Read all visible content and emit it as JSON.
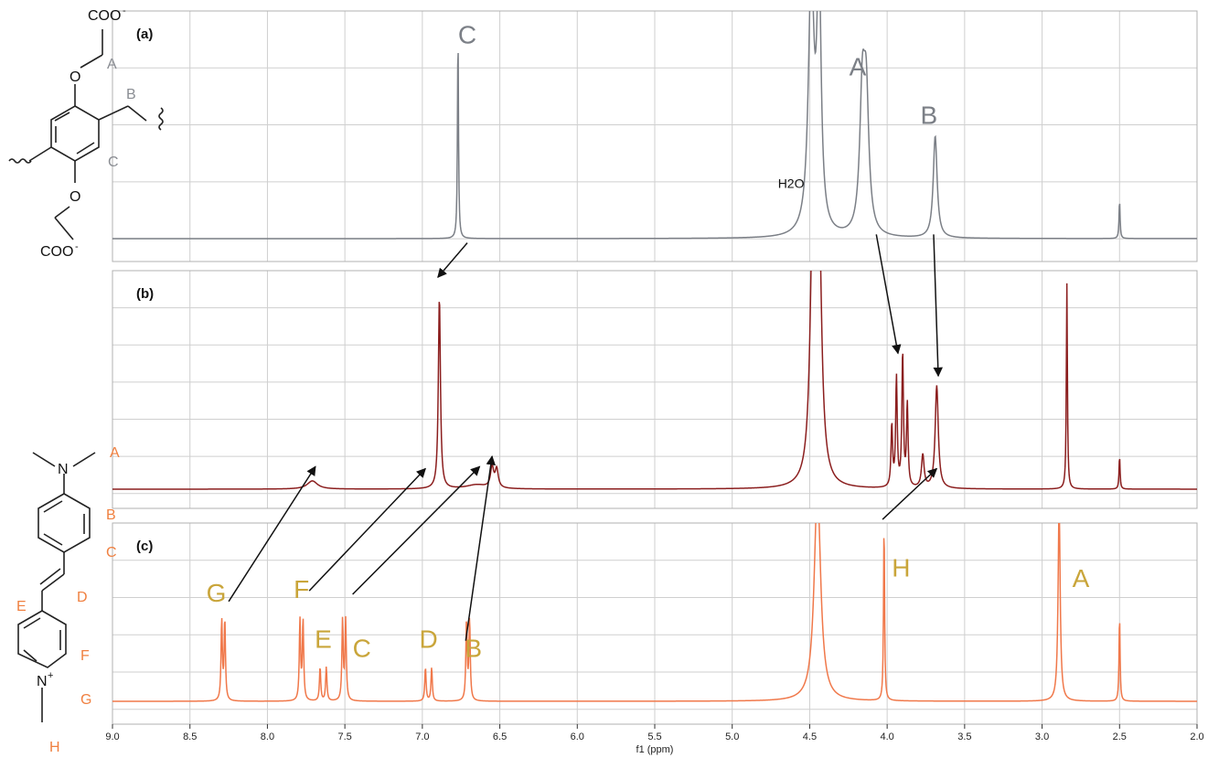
{
  "chart_data": {
    "type": "line",
    "xlabel": "f1 (ppm)",
    "xlim": [
      9.0,
      2.0
    ],
    "x_reversed": true,
    "x_ticks": [
      "9.0",
      "8.5",
      "8.0",
      "7.5",
      "7.0",
      "6.5",
      "6.0",
      "5.5",
      "5.0",
      "4.5",
      "4.0",
      "3.5",
      "3.0",
      "2.5",
      "2.0"
    ],
    "grid": true,
    "panels": [
      {
        "label": "(a)",
        "color": "#7b7f86",
        "solvent_label": "H2O",
        "peaks": [
          {
            "ppm": 6.77,
            "h": 0.96,
            "w": 0.004
          },
          {
            "ppm": 4.49,
            "h": 1.2,
            "w": 0.022
          },
          {
            "ppm": 4.44,
            "h": 1.2,
            "w": 0.016
          },
          {
            "ppm": 4.16,
            "h": 0.62,
            "w": 0.02
          },
          {
            "ppm": 4.135,
            "h": 0.6,
            "w": 0.02
          },
          {
            "ppm": 3.69,
            "h": 0.48,
            "w": 0.015
          },
          {
            "ppm": 2.5,
            "h": 0.18,
            "w": 0.004
          }
        ],
        "peak_labels": [
          {
            "text": "C",
            "ppm": 6.71,
            "level": 0.92
          },
          {
            "text": "A",
            "ppm": 4.19,
            "level": 0.77
          },
          {
            "text": "B",
            "ppm": 3.73,
            "level": 0.54
          }
        ]
      },
      {
        "label": "(b)",
        "color": "#8b1e1e",
        "peaks": [
          {
            "ppm": 6.89,
            "h": 0.93,
            "w": 0.008
          },
          {
            "ppm": 4.48,
            "h": 1.2,
            "w": 0.02
          },
          {
            "ppm": 4.44,
            "h": 1.2,
            "w": 0.02
          },
          {
            "ppm": 3.97,
            "h": 0.3,
            "w": 0.006
          },
          {
            "ppm": 3.94,
            "h": 0.53,
            "w": 0.006
          },
          {
            "ppm": 3.9,
            "h": 0.65,
            "w": 0.006
          },
          {
            "ppm": 3.87,
            "h": 0.4,
            "w": 0.006
          },
          {
            "ppm": 3.77,
            "h": 0.16,
            "w": 0.01
          },
          {
            "ppm": 3.68,
            "h": 0.5,
            "w": 0.012
          },
          {
            "ppm": 2.84,
            "h": 1.0,
            "w": 0.004
          },
          {
            "ppm": 2.5,
            "h": 0.16,
            "w": 0.004
          },
          {
            "ppm": 7.71,
            "h": 0.04,
            "w": 0.04
          },
          {
            "ppm": 6.55,
            "h": 0.1,
            "w": 0.012
          },
          {
            "ppm": 6.52,
            "h": 0.09,
            "w": 0.012
          },
          {
            "ppm": 6.65,
            "h": 0.02,
            "w": 0.08
          }
        ]
      },
      {
        "label": "(c)",
        "color": "#f0784a",
        "peaks": [
          {
            "ppm": 8.295,
            "h": 0.45,
            "w": 0.005
          },
          {
            "ppm": 8.275,
            "h": 0.45,
            "w": 0.005
          },
          {
            "ppm": 7.79,
            "h": 0.45,
            "w": 0.005
          },
          {
            "ppm": 7.77,
            "h": 0.45,
            "w": 0.005
          },
          {
            "ppm": 7.66,
            "h": 0.19,
            "w": 0.005
          },
          {
            "ppm": 7.62,
            "h": 0.19,
            "w": 0.005
          },
          {
            "ppm": 7.515,
            "h": 0.45,
            "w": 0.005
          },
          {
            "ppm": 7.495,
            "h": 0.45,
            "w": 0.005
          },
          {
            "ppm": 6.98,
            "h": 0.19,
            "w": 0.005
          },
          {
            "ppm": 6.94,
            "h": 0.19,
            "w": 0.005
          },
          {
            "ppm": 6.715,
            "h": 0.45,
            "w": 0.005
          },
          {
            "ppm": 6.695,
            "h": 0.45,
            "w": 0.005
          },
          {
            "ppm": 4.45,
            "h": 1.2,
            "w": 0.025
          },
          {
            "ppm": 4.02,
            "h": 1.0,
            "w": 0.004
          },
          {
            "ppm": 2.89,
            "h": 1.1,
            "w": 0.008
          },
          {
            "ppm": 2.5,
            "h": 0.48,
            "w": 0.004
          }
        ],
        "peak_labels": [
          {
            "text": "G",
            "ppm": 8.33,
            "level": 0.56
          },
          {
            "text": "F",
            "ppm": 7.78,
            "level": 0.58
          },
          {
            "text": "E",
            "ppm": 7.64,
            "level": 0.3
          },
          {
            "text": "C",
            "ppm": 7.39,
            "level": 0.25
          },
          {
            "text": "D",
            "ppm": 6.96,
            "level": 0.3
          },
          {
            "text": "B",
            "ppm": 6.67,
            "level": 0.25
          },
          {
            "text": "H",
            "ppm": 3.91,
            "level": 0.7
          },
          {
            "text": "A",
            "ppm": 2.75,
            "level": 0.64
          }
        ]
      }
    ],
    "arrows": [
      {
        "from": {
          "panel": 0,
          "ppm": 6.71,
          "level": -0.02
        },
        "to": {
          "panel": 1,
          "ppm": 6.9,
          "level": 1.03
        }
      },
      {
        "from": {
          "panel": 0,
          "ppm": 4.07,
          "level": 0.02
        },
        "to": {
          "panel": 1,
          "ppm": 3.93,
          "level": 0.66
        }
      },
      {
        "from": {
          "panel": 0,
          "ppm": 3.7,
          "level": 0.02
        },
        "to": {
          "panel": 1,
          "ppm": 3.67,
          "level": 0.55
        }
      },
      {
        "from": {
          "panel": 2,
          "ppm": 8.25,
          "level": 0.56
        },
        "to": {
          "panel": 1,
          "ppm": 7.69,
          "level": 0.11
        }
      },
      {
        "from": {
          "panel": 2,
          "ppm": 7.73,
          "level": 0.62
        },
        "to": {
          "panel": 1,
          "ppm": 6.98,
          "level": 0.1
        }
      },
      {
        "from": {
          "panel": 2,
          "ppm": 7.45,
          "level": 0.6
        },
        "to": {
          "panel": 1,
          "ppm": 6.63,
          "level": 0.11
        }
      },
      {
        "from": {
          "panel": 2,
          "ppm": 6.72,
          "level": 0.34
        },
        "to": {
          "panel": 1,
          "ppm": 6.55,
          "level": 0.16
        }
      },
      {
        "from": {
          "panel": 2,
          "ppm": 4.03,
          "level": 1.02
        },
        "to": {
          "panel": 1,
          "ppm": 3.68,
          "level": 0.1
        }
      }
    ]
  },
  "structures": {
    "top": {
      "carboxylate_top": "COO",
      "carboxylate_bottom": "COO",
      "charge": "-",
      "oxygen": "O",
      "labels": [
        "A",
        "B",
        "C"
      ]
    },
    "bottom": {
      "nitrogen": "N",
      "pyridinium": "N",
      "charge": "+",
      "labels": [
        "A",
        "B",
        "C",
        "D",
        "E",
        "F",
        "G",
        "H"
      ]
    }
  }
}
